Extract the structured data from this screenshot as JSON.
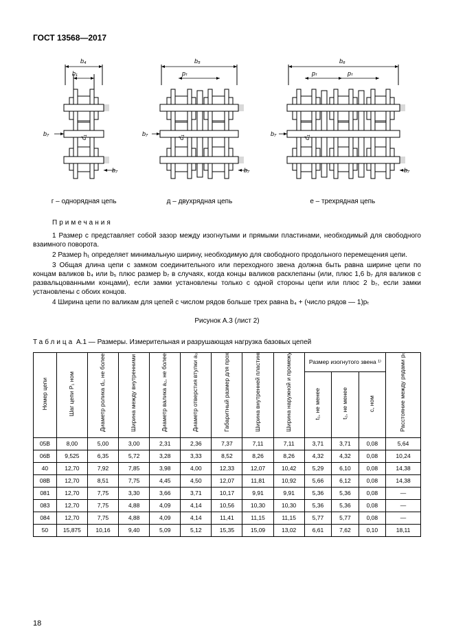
{
  "doc_id": "ГОСТ 13568—2017",
  "figure": {
    "captions": [
      "г – однорядная цепь",
      "д – двухрядная цепь",
      "е – трехрядная цепь"
    ],
    "dims": {
      "b1": "b₁",
      "b4": "b₄",
      "b5": "b₅",
      "b6": "b₆",
      "b7": "b₇",
      "d1": "d₁",
      "pt": "pₜ"
    },
    "label": "Рисунок А.3 (лист 2)"
  },
  "notes": {
    "title": "Примечания",
    "items": [
      "1 Размер c представляет собой зазор между изогнутыми и прямыми пластинами, необходимый для свободного взаимного поворота.",
      "2 Размер h₁ определяет минимальную ширину, необходимую для свободного продольного перемещения цепи.",
      "3 Общая длина цепи с замком соединительного или переходного звена должна быть равна ширине цепи по концам валиков b₄ или b₅ плюс размер b₇ в случаях, когда концы валиков расклепаны (или, плюс 1,6 b₇ для валиков с развальцованными концами), если замки установлены только с одной стороны цепи или плюс 2 b₇, если замки установлены с обоих концов.",
      "4 Ширина цепи по валикам для цепей с числом рядов больше трех равна b₄ + (число рядов — 1)pₜ"
    ]
  },
  "table": {
    "title_prefix": "Таблица",
    "title": " А.1 — Размеры. Измерительная и разрушающая нагрузка базовых цепей",
    "headers": {
      "c0": "Номер цепи",
      "c1": "Шаг цепи P₁ ном",
      "c2": "Диаметр ролика d₁, не более",
      "c3": "Ширина между внутренними пластинами b₁, не менее",
      "c4": "Диаметр валика a₂, не более",
      "c5": "Диаметр отверстия втулки a₃, не менее",
      "c6": "Габаритный размер для прохода цепи h₁, не менее",
      "c7": "Ширина внутренней пластины h₂, не более",
      "c8": "Ширина наружной и промежуточной пластин h₃, не более",
      "group": "Размер изогнутого звена ¹⁾",
      "g1": "t₁, не менее",
      "g2": "t₂, не менее",
      "g3": "c, ном",
      "c12": "Расстояние между рядами pₜ, ном"
    },
    "rows": [
      [
        "05В",
        "8,00",
        "5,00",
        "3,00",
        "2,31",
        "2,36",
        "7,37",
        "7,11",
        "7,11",
        "3,71",
        "3,71",
        "0,08",
        "5,64"
      ],
      [
        "06В",
        "9,525",
        "6,35",
        "5,72",
        "3,28",
        "3,33",
        "8,52",
        "8,26",
        "8,26",
        "4,32",
        "4,32",
        "0,08",
        "10,24"
      ],
      [
        "40",
        "12,70",
        "7,92",
        "7,85",
        "3,98",
        "4,00",
        "12,33",
        "12,07",
        "10,42",
        "5,29",
        "6,10",
        "0,08",
        "14,38"
      ],
      [
        "08В",
        "12,70",
        "8,51",
        "7,75",
        "4,45",
        "4,50",
        "12,07",
        "11,81",
        "10,92",
        "5,66",
        "6,12",
        "0,08",
        "14,38"
      ],
      [
        "081",
        "12,70",
        "7,75",
        "3,30",
        "3,66",
        "3,71",
        "10,17",
        "9,91",
        "9,91",
        "5,36",
        "5,36",
        "0,08",
        "—"
      ],
      [
        "083",
        "12,70",
        "7,75",
        "4,88",
        "4,09",
        "4,14",
        "10,56",
        "10,30",
        "10,30",
        "5,36",
        "5,36",
        "0,08",
        "—"
      ],
      [
        "084",
        "12,70",
        "7,75",
        "4,88",
        "4,09",
        "4,14",
        "11,41",
        "11,15",
        "11,15",
        "5,77",
        "5,77",
        "0,08",
        "—"
      ],
      [
        "50",
        "15,875",
        "10,16",
        "9,40",
        "5,09",
        "5,12",
        "15,35",
        "15,09",
        "13,02",
        "6,61",
        "7,62",
        "0,10",
        "18,11"
      ]
    ]
  },
  "page_number": "18"
}
